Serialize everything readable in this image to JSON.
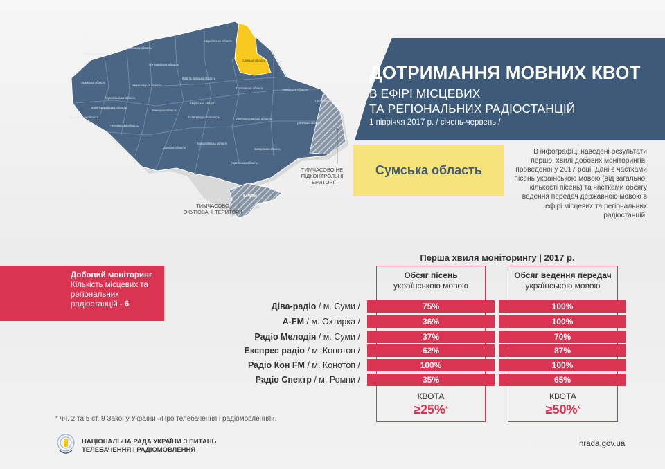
{
  "title": {
    "main": "ДОТРИМАННЯ МОВНИХ КВОТ",
    "sub1": "В ЕФІРІ МІСЦЕВИХ",
    "sub2": "ТА РЕГІОНАЛЬНИХ РАДІОСТАНЦІЙ",
    "period": "1 півріччя 2017 р. / січень-червень /"
  },
  "region": "Сумська область",
  "intro": "В інфографіці наведені результати першої хвилі добових моніторингів, проведеної у 2017 році. Дані є частками пісень українською мовою (від загальної кількості пісень) та частками обсягу ведення передач державною мовою в ефірі місцевих та регіональних радіостанцій.",
  "map": {
    "oblasts": [
      "Волинська область",
      "Рівненська область",
      "Житомирська область",
      "Чернігівська область",
      "Сумська область",
      "Львівська область",
      "Тернопільська область",
      "Хмельницька область",
      "Київ та Київська область",
      "Полтавська область",
      "Харківська область",
      "Луганська область",
      "Закарпатська область",
      "Івано-Франківська область",
      "Чернівецька область",
      "Вінницька область",
      "Черкаська область",
      "Кіровоградська область",
      "Дніпропетровська область",
      "Донецька область",
      "Одеська область",
      "Миколаївська область",
      "Запорізька область",
      "Херсонська область"
    ],
    "note_east": "ТИМЧАСОВО НЕ ПІДКОНТРОЛЬНІ ТЕРИТОРІЇ",
    "crimea": "КРИМ",
    "note_crimea": "ТИМЧАСОВО ОКУПОВАНІ ТЕРИТОРІЇ",
    "highlight_color": "#f7c91e",
    "base_color": "#4a6684"
  },
  "monitoring": {
    "title": "Добовий моніторинг",
    "text": "Кількість місцевих та регіональних радіостанцій -",
    "count": "6"
  },
  "table": {
    "wave_title": "Перша хвиля моніторингу | 2017 р.",
    "col_a_bold": "Обсяг пісень",
    "col_a_sub": "українською мовою",
    "col_b_bold": "Обсяг ведення передач",
    "col_b_sub": "українською мовою",
    "rows": [
      {
        "name": "Діва-радіо",
        "city": "/ м. Суми /",
        "songs": "75%",
        "broadcast": "100%"
      },
      {
        "name": "A-FM",
        "city": "/ м. Охтирка /",
        "songs": "36%",
        "broadcast": "100%"
      },
      {
        "name": "Радіо Мелодія",
        "city": "/ м. Суми /",
        "songs": "37%",
        "broadcast": "70%"
      },
      {
        "name": "Експрес радіо",
        "city": "/ м. Конотоп /",
        "songs": "62%",
        "broadcast": "87%"
      },
      {
        "name": "Радіо Кон FM",
        "city": "/ м. Конотоп /",
        "songs": "100%",
        "broadcast": "100%"
      },
      {
        "name": "Радіо Спектр",
        "city": "/ м. Ромни /",
        "songs": "35%",
        "broadcast": "65%"
      }
    ],
    "quota_label": "КВОТА",
    "quota_a": "≥25%",
    "quota_b": "≥50%",
    "asterisk": "*"
  },
  "footnote": "* чч. 2 та 5 ст. 9 Закону України «Про телебачення і радіомовлення».",
  "org_line1": "НАЦІОНАЛЬНА РАДА УКРАЇНИ З ПИТАНЬ",
  "org_line2": "ТЕЛЕБАЧЕННЯ І РАДІОМОВЛЕННЯ",
  "site": "nrada.gov.ua",
  "colors": {
    "red": "#d93452",
    "navy": "#3d5a78",
    "yellow": "#f7e37b"
  }
}
